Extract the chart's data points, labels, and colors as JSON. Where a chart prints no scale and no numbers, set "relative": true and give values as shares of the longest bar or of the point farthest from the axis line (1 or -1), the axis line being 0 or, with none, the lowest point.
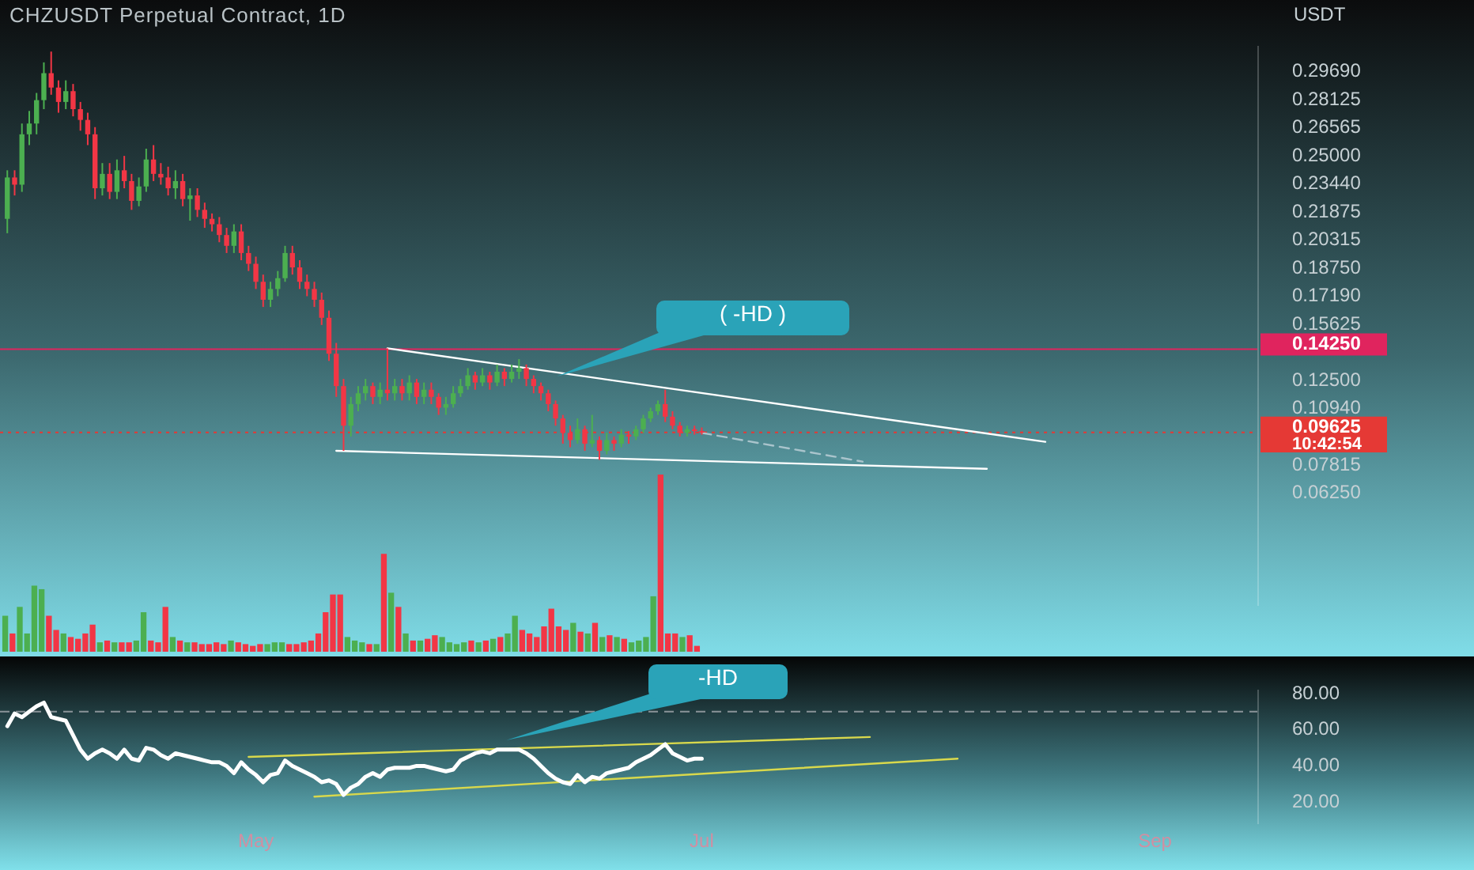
{
  "chart_data": [
    {
      "type": "candlestick",
      "title": "CHZUSDT Perpetual Contract, 1D",
      "ylabel": "USDT",
      "tick_labels": "y",
      "marker": "none",
      "x": [
        "--03-28",
        "--03-29",
        "--03-30",
        "--03-31",
        "--04-01",
        "--04-02",
        "--04-03",
        "--04-04",
        "--04-05",
        "--04-06",
        "--04-07",
        "--04-08",
        "--04-09",
        "--04-10",
        "--04-11",
        "--04-12",
        "--04-13",
        "--04-14",
        "--04-15",
        "--04-16",
        "--04-17",
        "--04-18",
        "--04-19",
        "--04-20",
        "--04-21",
        "--04-22",
        "--04-23",
        "--04-24",
        "--04-25",
        "--04-26",
        "--04-27",
        "--04-28",
        "--04-29",
        "--04-30",
        "--05-01",
        "--05-02",
        "--05-03",
        "--05-04",
        "--05-05",
        "--05-06",
        "--05-07",
        "--05-08",
        "--05-09",
        "--05-10",
        "--05-11",
        "--05-12",
        "--05-13",
        "--05-14",
        "--05-15",
        "--05-16",
        "--05-17",
        "--05-18",
        "--05-19",
        "--05-20",
        "--05-21",
        "--05-22",
        "--05-23",
        "--05-24",
        "--05-25",
        "--05-26",
        "--05-27",
        "--05-28",
        "--05-29",
        "--05-30",
        "--05-31",
        "--06-01",
        "--06-02",
        "--06-03",
        "--06-04",
        "--06-05",
        "--06-06",
        "--06-07",
        "--06-08",
        "--06-09",
        "--06-10",
        "--06-11",
        "--06-12",
        "--06-13",
        "--06-14",
        "--06-15",
        "--06-16",
        "--06-17",
        "--06-18",
        "--06-19",
        "--06-20",
        "--06-21",
        "--06-22",
        "--06-23",
        "--06-24",
        "--06-25",
        "--06-26",
        "--06-27",
        "--06-28",
        "--06-29",
        "--06-30",
        "--07-01"
      ],
      "ohlc": [
        [
          0.215,
          0.242,
          0.207,
          0.238
        ],
        [
          0.238,
          0.242,
          0.228,
          0.234
        ],
        [
          0.234,
          0.268,
          0.23,
          0.262
        ],
        [
          0.262,
          0.275,
          0.256,
          0.268
        ],
        [
          0.268,
          0.285,
          0.262,
          0.281
        ],
        [
          0.281,
          0.302,
          0.276,
          0.296
        ],
        [
          0.296,
          0.308,
          0.284,
          0.288
        ],
        [
          0.288,
          0.292,
          0.274,
          0.28
        ],
        [
          0.28,
          0.292,
          0.276,
          0.286
        ],
        [
          0.286,
          0.29,
          0.272,
          0.276
        ],
        [
          0.276,
          0.28,
          0.264,
          0.27
        ],
        [
          0.27,
          0.274,
          0.256,
          0.262
        ],
        [
          0.262,
          0.266,
          0.226,
          0.232
        ],
        [
          0.232,
          0.246,
          0.228,
          0.24
        ],
        [
          0.24,
          0.246,
          0.226,
          0.23
        ],
        [
          0.23,
          0.248,
          0.226,
          0.242
        ],
        [
          0.242,
          0.25,
          0.232,
          0.236
        ],
        [
          0.236,
          0.24,
          0.22,
          0.225
        ],
        [
          0.225,
          0.238,
          0.222,
          0.233
        ],
        [
          0.233,
          0.254,
          0.23,
          0.248
        ],
        [
          0.248,
          0.256,
          0.236,
          0.24
        ],
        [
          0.24,
          0.246,
          0.234,
          0.238
        ],
        [
          0.238,
          0.244,
          0.228,
          0.232
        ],
        [
          0.232,
          0.242,
          0.226,
          0.236
        ],
        [
          0.236,
          0.24,
          0.222,
          0.226
        ],
        [
          0.226,
          0.232,
          0.214,
          0.228
        ],
        [
          0.228,
          0.232,
          0.216,
          0.22
        ],
        [
          0.22,
          0.224,
          0.21,
          0.215
        ],
        [
          0.215,
          0.218,
          0.208,
          0.212
        ],
        [
          0.212,
          0.216,
          0.202,
          0.206
        ],
        [
          0.206,
          0.21,
          0.196,
          0.2
        ],
        [
          0.2,
          0.212,
          0.196,
          0.208
        ],
        [
          0.208,
          0.212,
          0.192,
          0.196
        ],
        [
          0.196,
          0.2,
          0.186,
          0.19
        ],
        [
          0.19,
          0.194,
          0.176,
          0.18
        ],
        [
          0.18,
          0.184,
          0.166,
          0.17
        ],
        [
          0.17,
          0.18,
          0.166,
          0.176
        ],
        [
          0.176,
          0.186,
          0.172,
          0.182
        ],
        [
          0.182,
          0.2,
          0.18,
          0.196
        ],
        [
          0.196,
          0.2,
          0.184,
          0.188
        ],
        [
          0.188,
          0.192,
          0.176,
          0.18
        ],
        [
          0.18,
          0.184,
          0.172,
          0.176
        ],
        [
          0.176,
          0.18,
          0.166,
          0.17
        ],
        [
          0.17,
          0.174,
          0.156,
          0.16
        ],
        [
          0.16,
          0.164,
          0.136,
          0.14
        ],
        [
          0.14,
          0.146,
          0.116,
          0.122
        ],
        [
          0.122,
          0.126,
          0.086,
          0.1
        ],
        [
          0.1,
          0.116,
          0.094,
          0.112
        ],
        [
          0.112,
          0.122,
          0.108,
          0.118
        ],
        [
          0.118,
          0.126,
          0.114,
          0.122
        ],
        [
          0.122,
          0.124,
          0.112,
          0.116
        ],
        [
          0.116,
          0.124,
          0.112,
          0.12
        ],
        [
          0.12,
          0.143,
          0.114,
          0.118
        ],
        [
          0.118,
          0.126,
          0.114,
          0.122
        ],
        [
          0.122,
          0.126,
          0.114,
          0.118
        ],
        [
          0.118,
          0.128,
          0.114,
          0.124
        ],
        [
          0.124,
          0.126,
          0.112,
          0.116
        ],
        [
          0.116,
          0.124,
          0.112,
          0.12
        ],
        [
          0.12,
          0.124,
          0.112,
          0.116
        ],
        [
          0.116,
          0.118,
          0.106,
          0.11
        ],
        [
          0.11,
          0.116,
          0.106,
          0.112
        ],
        [
          0.112,
          0.122,
          0.11,
          0.118
        ],
        [
          0.118,
          0.126,
          0.116,
          0.122
        ],
        [
          0.122,
          0.132,
          0.12,
          0.128
        ],
        [
          0.128,
          0.13,
          0.12,
          0.124
        ],
        [
          0.124,
          0.132,
          0.122,
          0.128
        ],
        [
          0.128,
          0.13,
          0.12,
          0.124
        ],
        [
          0.124,
          0.134,
          0.122,
          0.13
        ],
        [
          0.13,
          0.132,
          0.122,
          0.126
        ],
        [
          0.126,
          0.134,
          0.124,
          0.13
        ],
        [
          0.13,
          0.137,
          0.126,
          0.132
        ],
        [
          0.132,
          0.134,
          0.122,
          0.126
        ],
        [
          0.126,
          0.128,
          0.118,
          0.122
        ],
        [
          0.122,
          0.124,
          0.114,
          0.118
        ],
        [
          0.118,
          0.12,
          0.108,
          0.112
        ],
        [
          0.112,
          0.114,
          0.1,
          0.104
        ],
        [
          0.104,
          0.106,
          0.09,
          0.096
        ],
        [
          0.096,
          0.1,
          0.088,
          0.092
        ],
        [
          0.092,
          0.104,
          0.09,
          0.098
        ],
        [
          0.098,
          0.1,
          0.086,
          0.09
        ],
        [
          0.09,
          0.106,
          0.088,
          0.092
        ],
        [
          0.092,
          0.094,
          0.081,
          0.086
        ],
        [
          0.086,
          0.096,
          0.084,
          0.092
        ],
        [
          0.092,
          0.094,
          0.086,
          0.09
        ],
        [
          0.09,
          0.098,
          0.088,
          0.095
        ],
        [
          0.095,
          0.097,
          0.09,
          0.094
        ],
        [
          0.094,
          0.1,
          0.092,
          0.098
        ],
        [
          0.098,
          0.106,
          0.096,
          0.104
        ],
        [
          0.104,
          0.11,
          0.102,
          0.108
        ],
        [
          0.108,
          0.114,
          0.106,
          0.112
        ],
        [
          0.112,
          0.12,
          0.102,
          0.105
        ],
        [
          0.105,
          0.108,
          0.098,
          0.1
        ],
        [
          0.1,
          0.102,
          0.094,
          0.096
        ],
        [
          0.096,
          0.1,
          0.094,
          0.098
        ],
        [
          0.098,
          0.1,
          0.095,
          0.097
        ],
        [
          0.097,
          0.099,
          0.095,
          0.09625
        ]
      ],
      "series": [
        {
          "type": "line",
          "color": "#ffffff",
          "x": [
            "--05-19",
            "--08-17"
          ],
          "values": [
            0.143,
            0.091
          ]
        },
        {
          "type": "line",
          "color": "#ffffff",
          "x": [
            "--05-12",
            "--08-09"
          ],
          "values": [
            0.086,
            0.076
          ]
        },
        {
          "type": "line",
          "color": "#a9c4cc",
          "line_style": "dashed",
          "x": [
            "--07-01",
            "--07-23"
          ],
          "values": [
            0.096,
            0.08
          ]
        }
      ],
      "xlim": [
        "--03-27",
        "--09-15"
      ],
      "ylim": [
        0,
        0.311
      ],
      "yticks": [
        {
          "value": 0.0625,
          "label": "0.06250"
        },
        {
          "value": 0.07815,
          "label": "0.07815"
        },
        {
          "value": 0.1094,
          "label": "0.10940"
        },
        {
          "value": 0.125,
          "label": "0.12500"
        },
        {
          "value": 0.15625,
          "label": "0.15625"
        },
        {
          "value": 0.1719,
          "label": "0.17190"
        },
        {
          "value": 0.1875,
          "label": "0.18750"
        },
        {
          "value": 0.20315,
          "label": "0.20315"
        },
        {
          "value": 0.21875,
          "label": "0.21875"
        },
        {
          "value": 0.2344,
          "label": "0.23440"
        },
        {
          "value": 0.25,
          "label": "0.25000"
        },
        {
          "value": 0.26565,
          "label": "0.26565"
        },
        {
          "value": 0.28125,
          "label": "0.28125"
        },
        {
          "value": 0.2969,
          "label": "0.29690"
        }
      ],
      "ref_lines": [
        {
          "axis": "y",
          "value": 0.1425,
          "label": "0.14250",
          "color": "#e0245e"
        },
        {
          "axis": "y",
          "value": 0.09625,
          "label": "0.09625",
          "color": "#e53935",
          "line_style": "dotted"
        }
      ],
      "annotations": [
        "( -HD )",
        "10:42:54"
      ]
    },
    {
      "type": "bar",
      "relative": true,
      "tick_labels": false,
      "categories": [
        null,
        null,
        null,
        null,
        null,
        null,
        null,
        null,
        null,
        null,
        null,
        null,
        null,
        null,
        null,
        null,
        null,
        null,
        null,
        null,
        null,
        null,
        null,
        null,
        null,
        null,
        null,
        null,
        null,
        null,
        null,
        null,
        null,
        null,
        null,
        null,
        null,
        null,
        null,
        null,
        null,
        null,
        null,
        null,
        null,
        null,
        null,
        null,
        null,
        null,
        null,
        null,
        null,
        null,
        null,
        null,
        null,
        null,
        null,
        null,
        null,
        null,
        null,
        null,
        null,
        null,
        null,
        null,
        null,
        null,
        null,
        null,
        null,
        null,
        null,
        null,
        null,
        null,
        null,
        null,
        null,
        null,
        null,
        null,
        null,
        null,
        null,
        null,
        null,
        null,
        null,
        null,
        null,
        null,
        null,
        null
      ],
      "values": [
        0.2,
        0.1,
        0.25,
        0.1,
        0.37,
        0.35,
        0.2,
        0.12,
        0.1,
        0.08,
        0.07,
        0.1,
        0.15,
        0.05,
        0.06,
        0.05,
        0.05,
        0.05,
        0.06,
        0.22,
        0.06,
        0.05,
        0.25,
        0.08,
        0.06,
        0.05,
        0.05,
        0.04,
        0.04,
        0.05,
        0.04,
        0.06,
        0.05,
        0.04,
        0.03,
        0.04,
        0.04,
        0.05,
        0.05,
        0.04,
        0.04,
        0.05,
        0.06,
        0.1,
        0.22,
        0.32,
        0.32,
        0.08,
        0.06,
        0.05,
        0.04,
        0.04,
        0.55,
        0.33,
        0.25,
        0.1,
        0.06,
        0.06,
        0.07,
        0.09,
        0.08,
        0.05,
        0.04,
        0.05,
        0.06,
        0.05,
        0.06,
        0.07,
        0.08,
        0.1,
        0.2,
        0.12,
        0.1,
        0.08,
        0.14,
        0.24,
        0.14,
        0.12,
        0.16,
        0.11,
        0.1,
        0.16,
        0.08,
        0.09,
        0.08,
        0.07,
        0.05,
        0.06,
        0.08,
        0.31,
        1,
        0.1,
        0.1,
        0.08,
        0.09,
        0.03
      ],
      "colors": [
        "#4caf50",
        "#f23645",
        "#4caf50",
        "#4caf50",
        "#4caf50",
        "#4caf50",
        "#f23645",
        "#f23645",
        "#4caf50",
        "#f23645",
        "#f23645",
        "#f23645",
        "#f23645",
        "#4caf50",
        "#f23645",
        "#4caf50",
        "#f23645",
        "#f23645",
        "#4caf50",
        "#4caf50",
        "#f23645",
        "#f23645",
        "#f23645",
        "#4caf50",
        "#f23645",
        "#4caf50",
        "#f23645",
        "#f23645",
        "#f23645",
        "#f23645",
        "#f23645",
        "#4caf50",
        "#f23645",
        "#f23645",
        "#f23645",
        "#f23645",
        "#4caf50",
        "#4caf50",
        "#4caf50",
        "#f23645",
        "#f23645",
        "#f23645",
        "#f23645",
        "#f23645",
        "#f23645",
        "#f23645",
        "#f23645",
        "#4caf50",
        "#4caf50",
        "#4caf50",
        "#f23645",
        "#4caf50",
        "#f23645",
        "#4caf50",
        "#f23645",
        "#4caf50",
        "#f23645",
        "#4caf50",
        "#f23645",
        "#f23645",
        "#4caf50",
        "#4caf50",
        "#4caf50",
        "#4caf50",
        "#f23645",
        "#4caf50",
        "#f23645",
        "#4caf50",
        "#f23645",
        "#4caf50",
        "#4caf50",
        "#f23645",
        "#f23645",
        "#f23645",
        "#f23645",
        "#f23645",
        "#f23645",
        "#f23645",
        "#4caf50",
        "#f23645",
        "#4caf50",
        "#f23645",
        "#4caf50",
        "#f23645",
        "#4caf50",
        "#f23645",
        "#4caf50",
        "#4caf50",
        "#4caf50",
        "#4caf50",
        "#f23645",
        "#f23645",
        "#f23645",
        "#4caf50",
        "#f23645",
        "#f23645"
      ]
    },
    {
      "type": "line",
      "marker": "none",
      "x": [
        "--03-28",
        "--03-29",
        "--03-30",
        "--03-31",
        "--04-01",
        "--04-02",
        "--04-03",
        "--04-04",
        "--04-05",
        "--04-06",
        "--04-07",
        "--04-08",
        "--04-09",
        "--04-10",
        "--04-11",
        "--04-12",
        "--04-13",
        "--04-14",
        "--04-15",
        "--04-16",
        "--04-17",
        "--04-18",
        "--04-19",
        "--04-20",
        "--04-21",
        "--04-22",
        "--04-23",
        "--04-24",
        "--04-25",
        "--04-26",
        "--04-27",
        "--04-28",
        "--04-29",
        "--04-30",
        "--05-01",
        "--05-02",
        "--05-03",
        "--05-04",
        "--05-05",
        "--05-06",
        "--05-07",
        "--05-08",
        "--05-09",
        "--05-10",
        "--05-11",
        "--05-12",
        "--05-13",
        "--05-14",
        "--05-15",
        "--05-16",
        "--05-17",
        "--05-18",
        "--05-19",
        "--05-20",
        "--05-21",
        "--05-22",
        "--05-23",
        "--05-24",
        "--05-25",
        "--05-26",
        "--05-27",
        "--05-28",
        "--05-29",
        "--05-30",
        "--05-31",
        "--06-01",
        "--06-02",
        "--06-03",
        "--06-04",
        "--06-05",
        "--06-06",
        "--06-07",
        "--06-08",
        "--06-09",
        "--06-10",
        "--06-11",
        "--06-12",
        "--06-13",
        "--06-14",
        "--06-15",
        "--06-16",
        "--06-17",
        "--06-18",
        "--06-19",
        "--06-20",
        "--06-21",
        "--06-22",
        "--06-23",
        "--06-24",
        "--06-25",
        "--06-26",
        "--06-27",
        "--06-28",
        "--06-29",
        "--06-30",
        "--07-01"
      ],
      "series": [
        {
          "color": "#ffffff",
          "values": [
            62,
            69,
            67,
            70,
            73,
            75,
            67,
            66,
            65,
            57,
            49,
            44,
            47,
            49,
            47,
            44,
            49,
            44,
            43,
            50,
            49,
            46,
            44,
            47,
            46,
            45,
            44,
            43,
            42,
            42,
            40,
            36,
            42,
            38,
            35,
            31,
            35,
            36,
            43,
            40,
            38,
            36,
            34,
            31,
            32,
            30,
            24,
            28,
            30,
            34,
            36,
            34,
            38,
            39,
            39,
            39,
            40,
            40,
            39,
            38,
            37,
            38,
            43,
            45,
            47,
            48,
            47,
            49,
            49,
            49,
            49,
            47,
            44,
            40,
            36,
            33,
            31,
            30,
            35,
            31,
            34,
            33,
            36,
            37,
            38,
            39,
            42,
            44,
            46,
            49,
            52,
            47,
            45,
            43,
            44,
            44
          ]
        },
        {
          "type": "line",
          "color": "#d8d84c",
          "x": [
            "--04-30",
            "--07-24"
          ],
          "values": [
            45,
            56
          ]
        },
        {
          "type": "line",
          "color": "#d8d84c",
          "x": [
            "--05-09",
            "--08-05"
          ],
          "values": [
            23,
            44
          ]
        }
      ],
      "xlim": [
        "--03-27",
        "--09-15"
      ],
      "xticks": [
        {
          "value": "--05-01",
          "label": "May"
        },
        {
          "value": "--07-01",
          "label": "Jul"
        },
        {
          "value": "--09-01",
          "label": "Sep"
        }
      ],
      "ylim": [
        8,
        82
      ],
      "yticks": [
        {
          "value": 20,
          "label": "20.00"
        },
        {
          "value": 40,
          "label": "40.00"
        },
        {
          "value": 60,
          "label": "60.00"
        },
        {
          "value": 80,
          "label": "80.00"
        }
      ],
      "ref_lines": [
        {
          "axis": "y",
          "value": 70,
          "color": "#8a9499",
          "line_style": "dashed"
        }
      ],
      "annotations": [
        "-HD"
      ]
    }
  ]
}
